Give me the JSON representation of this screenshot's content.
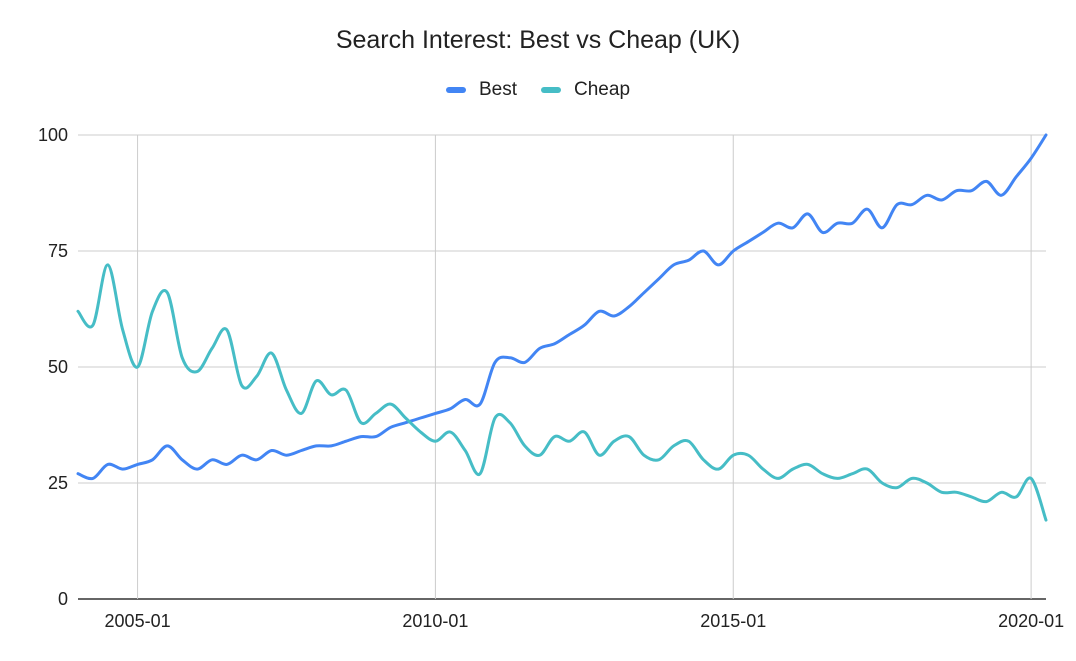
{
  "chart_data": {
    "type": "line",
    "title": "Search Interest: Best vs Cheap (UK)",
    "xlabel": "",
    "ylabel": "",
    "x_ticks": [
      "2005-01",
      "2010-01",
      "2015-01",
      "2020-01"
    ],
    "y_ticks": [
      0,
      25,
      50,
      75,
      100
    ],
    "ylim": [
      0,
      100
    ],
    "xlim": [
      "2004-01",
      "2020-04"
    ],
    "grid": true,
    "legend_position": "top",
    "x_step": "quarterly",
    "x": [
      "2004-01",
      "2004-04",
      "2004-07",
      "2004-10",
      "2005-01",
      "2005-04",
      "2005-07",
      "2005-10",
      "2006-01",
      "2006-04",
      "2006-07",
      "2006-10",
      "2007-01",
      "2007-04",
      "2007-07",
      "2007-10",
      "2008-01",
      "2008-04",
      "2008-07",
      "2008-10",
      "2009-01",
      "2009-04",
      "2009-07",
      "2009-10",
      "2010-01",
      "2010-04",
      "2010-07",
      "2010-10",
      "2011-01",
      "2011-04",
      "2011-07",
      "2011-10",
      "2012-01",
      "2012-04",
      "2012-07",
      "2012-10",
      "2013-01",
      "2013-04",
      "2013-07",
      "2013-10",
      "2014-01",
      "2014-04",
      "2014-07",
      "2014-10",
      "2015-01",
      "2015-04",
      "2015-07",
      "2015-10",
      "2016-01",
      "2016-04",
      "2016-07",
      "2016-10",
      "2017-01",
      "2017-04",
      "2017-07",
      "2017-10",
      "2018-01",
      "2018-04",
      "2018-07",
      "2018-10",
      "2019-01",
      "2019-04",
      "2019-07",
      "2019-10",
      "2020-01",
      "2020-04"
    ],
    "series": [
      {
        "name": "Best",
        "color": "#4285f4",
        "values": [
          27,
          26,
          29,
          28,
          29,
          30,
          33,
          30,
          28,
          30,
          29,
          31,
          30,
          32,
          31,
          32,
          33,
          33,
          34,
          35,
          35,
          37,
          38,
          39,
          40,
          41,
          43,
          42,
          51,
          52,
          51,
          54,
          55,
          57,
          59,
          62,
          61,
          63,
          66,
          69,
          72,
          73,
          75,
          72,
          75,
          77,
          79,
          81,
          80,
          83,
          79,
          81,
          81,
          84,
          80,
          85,
          85,
          87,
          86,
          88,
          88,
          90,
          87,
          91,
          95,
          100
        ]
      },
      {
        "name": "Cheap",
        "color": "#46bdc6",
        "values": [
          62,
          59,
          72,
          58,
          50,
          62,
          66,
          52,
          49,
          54,
          58,
          46,
          48,
          53,
          45,
          40,
          47,
          44,
          45,
          38,
          40,
          42,
          39,
          36,
          34,
          36,
          32,
          27,
          39,
          38,
          33,
          31,
          35,
          34,
          36,
          31,
          34,
          35,
          31,
          30,
          33,
          34,
          30,
          28,
          31,
          31,
          28,
          26,
          28,
          29,
          27,
          26,
          27,
          28,
          25,
          24,
          26,
          25,
          23,
          23,
          22,
          21,
          23,
          22,
          26,
          17
        ]
      }
    ]
  },
  "title": "Search Interest: Best vs Cheap (UK)",
  "legend": [
    {
      "label": "Best",
      "color": "#4285f4"
    },
    {
      "label": "Cheap",
      "color": "#46bdc6"
    }
  ]
}
